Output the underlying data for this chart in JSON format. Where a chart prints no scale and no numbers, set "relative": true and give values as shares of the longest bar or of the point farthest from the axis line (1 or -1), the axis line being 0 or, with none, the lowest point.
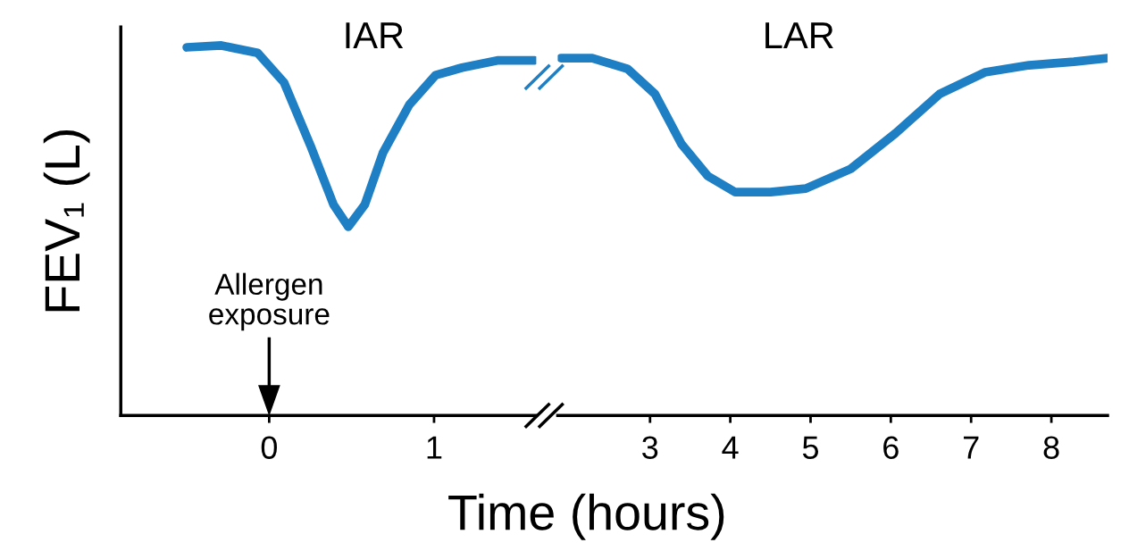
{
  "chart_data": [
    {
      "type": "line",
      "relative": true,
      "ylabel": "FEV₁ (L)",
      "tick_labels": "x",
      "xlim": [
        -0.9,
        1.62
      ],
      "xticks": [
        0,
        1
      ],
      "grid": false,
      "legend": false,
      "marker": "none",
      "line_style": "solid",
      "annotations": [
        "IAR",
        "Allergen\nexposure"
      ],
      "x": [
        -0.5,
        -0.29,
        -0.07,
        0.09,
        0.25,
        0.39,
        0.48,
        0.58,
        0.69,
        0.85,
        1.01,
        1.17,
        1.39,
        1.61
      ],
      "series": [
        {
          "color": "#1f7fc4",
          "values": [
            0.995,
            1,
            0.98,
            0.9,
            0.73,
            0.57,
            0.51,
            0.57,
            0.71,
            0.84,
            0.92,
            0.94,
            0.96,
            0.96
          ]
        }
      ]
    },
    {
      "type": "line",
      "relative": true,
      "xlabel": "Time (hours)",
      "tick_labels": "x",
      "xlim": [
        1.85,
        8.7
      ],
      "xticks": [
        3,
        4,
        5,
        6,
        7,
        8
      ],
      "grid": false,
      "legend": false,
      "marker": "none",
      "line_style": "solid",
      "annotations": [
        "LAR"
      ],
      "x": [
        1.89,
        2.28,
        2.72,
        3.06,
        3.39,
        3.72,
        4.06,
        4.5,
        4.94,
        5.5,
        6.06,
        6.61,
        7.17,
        7.72,
        8.28,
        8.7
      ],
      "series": [
        {
          "color": "#1f7fc4",
          "values": [
            1,
            1,
            0.97,
            0.9,
            0.76,
            0.67,
            0.625,
            0.625,
            0.635,
            0.69,
            0.79,
            0.9,
            0.96,
            0.98,
            0.99,
            1
          ]
        }
      ]
    }
  ]
}
